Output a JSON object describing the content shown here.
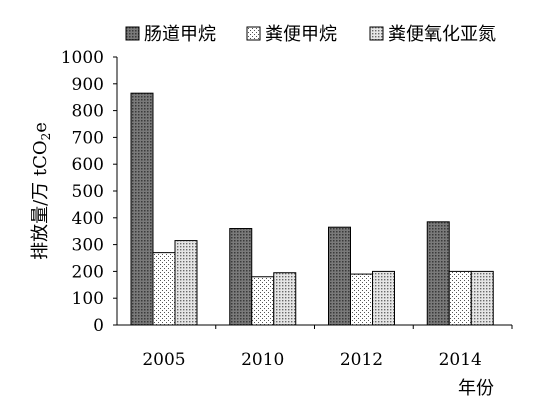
{
  "chart_data": {
    "type": "bar",
    "categories": [
      "2005",
      "2010",
      "2012",
      "2014"
    ],
    "series": [
      {
        "name": "肠道甲烷",
        "values": [
          865,
          360,
          365,
          385
        ],
        "pattern": "dark-dots",
        "color": "#6b6b6b"
      },
      {
        "name": "粪便甲烷",
        "values": [
          270,
          180,
          190,
          200
        ],
        "pattern": "light-dots",
        "color": "#f2f2f2"
      },
      {
        "name": "粪便氧化亚氮",
        "values": [
          315,
          195,
          200,
          200
        ],
        "pattern": "medium-dots",
        "color": "#d2d2d2"
      }
    ],
    "ylabel_main": "排放量/万 tCO",
    "ylabel_sub": "2",
    "ylabel_tail": "e",
    "xlabel": "年份",
    "ylim": [
      0,
      1000
    ],
    "yticks": [
      0,
      100,
      200,
      300,
      400,
      500,
      600,
      700,
      800,
      900,
      1000
    ],
    "grid": false,
    "legend_position": "top"
  }
}
